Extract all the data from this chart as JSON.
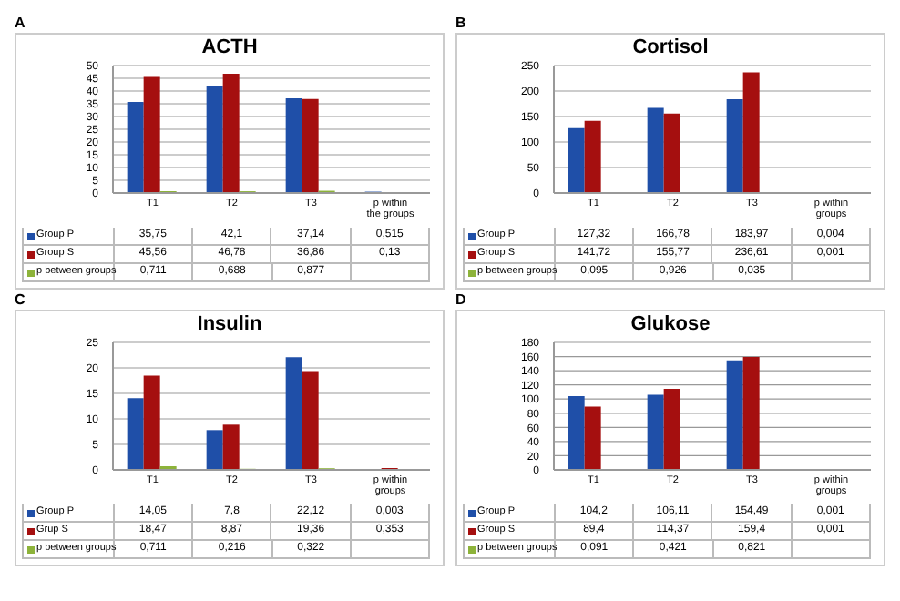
{
  "chart_data": [
    {
      "type": "bar",
      "title": "ACTH",
      "annotations": [
        "A"
      ],
      "categories": [
        "T1",
        "T2",
        "T3",
        "p within the groups"
      ],
      "ylim": [
        0,
        50
      ],
      "yticks": [
        0,
        5,
        10,
        15,
        20,
        25,
        30,
        35,
        40,
        45,
        50
      ],
      "grid": "y",
      "legend": "bottom",
      "series": [
        {
          "name": "Group P",
          "color": "#1f4fa8",
          "values": [
            35.75,
            42.1,
            37.14,
            0.515
          ],
          "value_labels": [
            "35,75",
            "42,1",
            "37,14",
            "0,515"
          ]
        },
        {
          "name": "Group S",
          "color": "#a50f0f",
          "values": [
            45.56,
            46.78,
            36.86,
            0.13
          ],
          "value_labels": [
            "45,56",
            "46,78",
            "36,86",
            "0,13"
          ]
        },
        {
          "name": "p between groups",
          "color": "#8db33a",
          "values": [
            0.711,
            0.688,
            0.877,
            null
          ],
          "value_labels": [
            "0,711",
            "0,688",
            "0,877",
            null
          ]
        }
      ]
    },
    {
      "type": "bar",
      "title": "Cortisol",
      "annotations": [
        "B"
      ],
      "categories": [
        "T1",
        "T2",
        "T3",
        "p within groups"
      ],
      "ylim": [
        0,
        250
      ],
      "yticks": [
        0,
        50,
        100,
        150,
        200,
        250
      ],
      "grid": "y",
      "legend": "bottom",
      "series": [
        {
          "name": "Group P",
          "color": "#1f4fa8",
          "values": [
            127.32,
            166.78,
            183.97,
            0.004
          ],
          "value_labels": [
            "127,32",
            "166,78",
            "183,97",
            "0,004"
          ]
        },
        {
          "name": "Group S",
          "color": "#a50f0f",
          "values": [
            141.72,
            155.77,
            236.61,
            0.001
          ],
          "value_labels": [
            "141,72",
            "155,77",
            "236,61",
            "0,001"
          ]
        },
        {
          "name": "p between groups",
          "color": "#8db33a",
          "values": [
            0.095,
            0.926,
            0.035,
            null
          ],
          "value_labels": [
            "0,095",
            "0,926",
            "0,035",
            null
          ]
        }
      ]
    },
    {
      "type": "bar",
      "title": "Insulin",
      "annotations": [
        "C"
      ],
      "categories": [
        "T1",
        "T2",
        "T3",
        "p within groups"
      ],
      "ylim": [
        0,
        25
      ],
      "yticks": [
        0,
        5,
        10,
        15,
        20,
        25
      ],
      "grid": "y",
      "legend": "bottom",
      "series": [
        {
          "name": "Group P",
          "color": "#1f4fa8",
          "values": [
            14.05,
            7.8,
            22.12,
            0.003
          ],
          "value_labels": [
            "14,05",
            "7,8",
            "22,12",
            "0,003"
          ]
        },
        {
          "name": "Grup S",
          "color": "#a50f0f",
          "values": [
            18.47,
            8.87,
            19.36,
            0.353
          ],
          "value_labels": [
            "18,47",
            "8,87",
            "19,36",
            "0,353"
          ]
        },
        {
          "name": "p between groups",
          "color": "#8db33a",
          "values": [
            0.711,
            0.216,
            0.322,
            null
          ],
          "value_labels": [
            "0,711",
            "0,216",
            "0,322",
            null
          ]
        }
      ]
    },
    {
      "type": "bar",
      "title": "Glukose",
      "annotations": [
        "D"
      ],
      "categories": [
        "T1",
        "T2",
        "T3",
        "p within groups"
      ],
      "ylim": [
        0,
        180
      ],
      "yticks": [
        0,
        20,
        40,
        60,
        80,
        100,
        120,
        140,
        160,
        180
      ],
      "grid": "y",
      "legend": "bottom",
      "series": [
        {
          "name": "Group P",
          "color": "#1f4fa8",
          "values": [
            104.2,
            106.11,
            154.49,
            0.001
          ],
          "value_labels": [
            "104,2",
            "106,11",
            "154,49",
            "0,001"
          ]
        },
        {
          "name": "Group S",
          "color": "#a50f0f",
          "values": [
            89.4,
            114.37,
            159.4,
            0.001
          ],
          "value_labels": [
            "89,4",
            "114,37",
            "159,4",
            "0,001"
          ]
        },
        {
          "name": "p between groups",
          "color": "#8db33a",
          "values": [
            0.091,
            0.421,
            0.821,
            null
          ],
          "value_labels": [
            "0,091",
            "0,421",
            "0,821",
            null
          ]
        }
      ]
    }
  ]
}
